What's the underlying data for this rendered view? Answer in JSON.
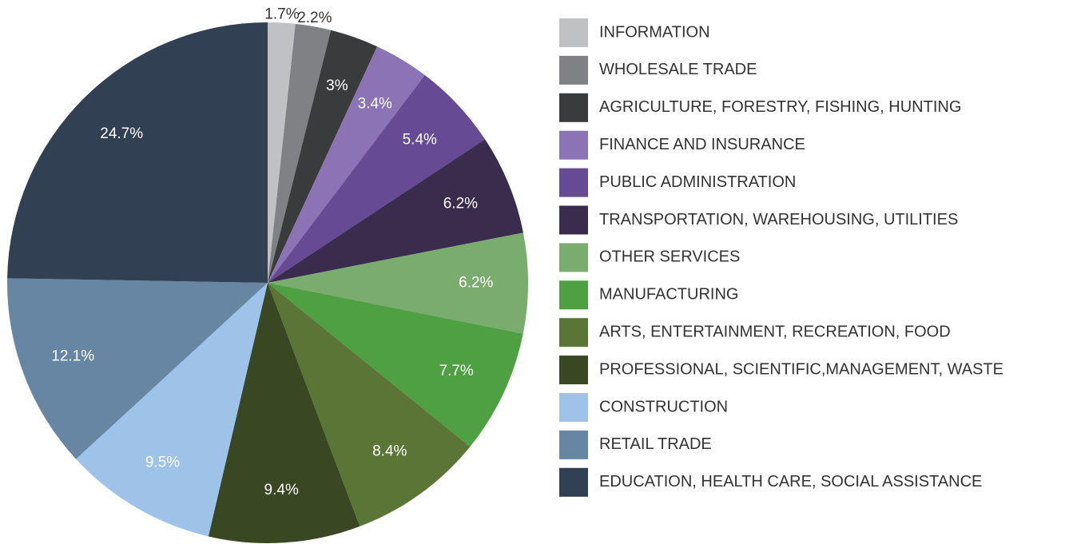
{
  "chart_data": {
    "type": "pie",
    "categories": [
      "INFORMATION",
      "WHOLESALE TRADE",
      "AGRICULTURE, FORESTRY, FISHING, HUNTING",
      "FINANCE AND INSURANCE",
      "PUBLIC ADMINISTRATION",
      "TRANSPORTATION, WAREHOUSING, UTILITIES",
      "OTHER SERVICES",
      "MANUFACTURING",
      "ARTS, ENTERTAINMENT, RECREATION, FOOD",
      "PROFESSIONAL, SCIENTIFIC,MANAGEMENT, WASTE",
      "CONSTRUCTION",
      "RETAIL TRADE",
      "EDUCATION, HEALTH CARE, SOCIAL ASSISTANCE"
    ],
    "values": [
      1.7,
      2.2,
      3,
      3.4,
      5.4,
      6.2,
      6.2,
      7.7,
      8.4,
      9.4,
      9.5,
      12.1,
      24.7
    ],
    "value_labels": [
      "1.7%",
      "2.2%",
      "3%",
      "3.4%",
      "5.4%",
      "6.2%",
      "6.2%",
      "7.7%",
      "8.4%",
      "9.4%",
      "9.5%",
      "12.1%",
      "24.7%"
    ],
    "colors": [
      "#c0c1c3",
      "#808184",
      "#3a3b3d",
      "#8b73b5",
      "#674a94",
      "#3a2c4c",
      "#7aac6e",
      "#4ea043",
      "#5a7535",
      "#394822",
      "#9fc3e8",
      "#6786a3",
      "#314153"
    ],
    "legend": "right"
  }
}
